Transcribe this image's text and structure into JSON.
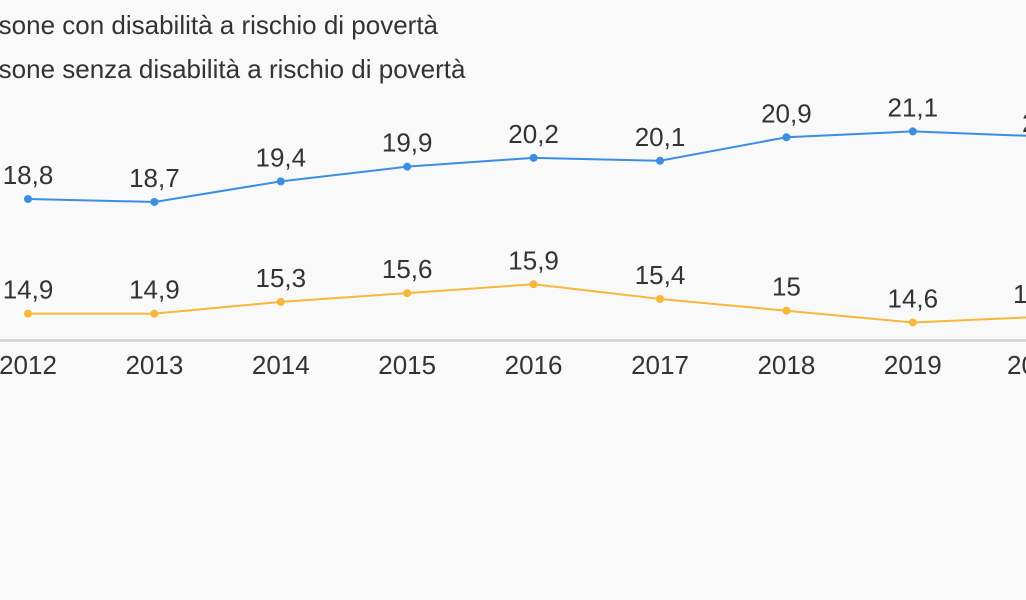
{
  "chart_data": {
    "type": "line",
    "title": "",
    "xlabel": "",
    "ylabel": "",
    "categories": [
      "2012",
      "2013",
      "2014",
      "2015",
      "2016",
      "2017",
      "2018",
      "2019"
    ],
    "series": [
      {
        "name": "rsone con disabilità a rischio di povertà",
        "color": "#3b8de6",
        "values": [
          18.8,
          18.7,
          19.4,
          19.9,
          20.2,
          20.1,
          20.9,
          21.1
        ],
        "labels": [
          "18,8",
          "18,7",
          "19,4",
          "19,9",
          "20,2",
          "20,1",
          "20,9",
          "21,1"
        ],
        "trailing_edge_value": 20.95
      },
      {
        "name": "rsone senza disabilità a rischio di povertà",
        "color": "#f9b73a",
        "values": [
          14.9,
          14.9,
          15.3,
          15.6,
          15.9,
          15.4,
          15.0,
          14.6
        ],
        "labels": [
          "14,9",
          "14,9",
          "15,3",
          "15,6",
          "15,9",
          "15,4",
          "15",
          "14,6"
        ],
        "trailing_edge_value": 14.77
      }
    ],
    "legend_position": "top-left",
    "grid": false
  },
  "partial": {
    "next_year_fragment": "20",
    "blue_label_fragment": "2",
    "orange_label_fragment": "1"
  }
}
